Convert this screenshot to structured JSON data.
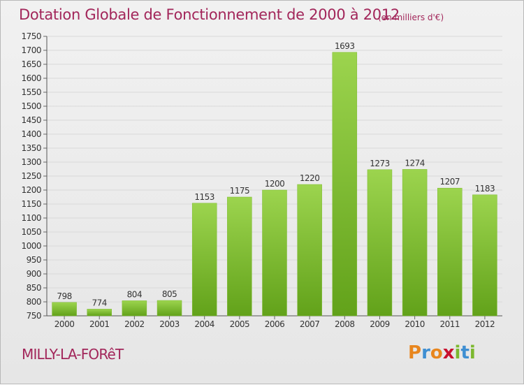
{
  "header": {
    "title": "Dotation Globale de Fonctionnement de 2000 à 2012",
    "unit": "(en milliers d'€)"
  },
  "footer": {
    "commune": "MILLY-LA-FORêT",
    "logo_letters": [
      "P",
      "r",
      "o",
      "x",
      "i",
      "t",
      "i"
    ],
    "logo_colors": [
      "#e8861e",
      "#3f8fd2",
      "#e8861e",
      "#c8102e",
      "#7cb82f",
      "#3f8fd2",
      "#7cb82f"
    ]
  },
  "chart_data": {
    "type": "bar",
    "title": "Dotation Globale de Fonctionnement de 2000 à 2012",
    "xlabel": "",
    "ylabel": "",
    "categories": [
      "2000",
      "2001",
      "2002",
      "2003",
      "2004",
      "2005",
      "2006",
      "2007",
      "2008",
      "2009",
      "2010",
      "2011",
      "2012"
    ],
    "values": [
      798,
      774,
      804,
      805,
      1153,
      1175,
      1200,
      1220,
      1693,
      1273,
      1274,
      1207,
      1183
    ],
    "ylim": [
      750,
      1750
    ],
    "yticks": [
      750,
      800,
      850,
      900,
      950,
      1000,
      1050,
      1100,
      1150,
      1200,
      1250,
      1300,
      1350,
      1400,
      1450,
      1500,
      1550,
      1600,
      1650,
      1700,
      1750
    ],
    "grid": true,
    "bar_color_top": "#9cd44e",
    "bar_color_bottom": "#62a21a"
  }
}
